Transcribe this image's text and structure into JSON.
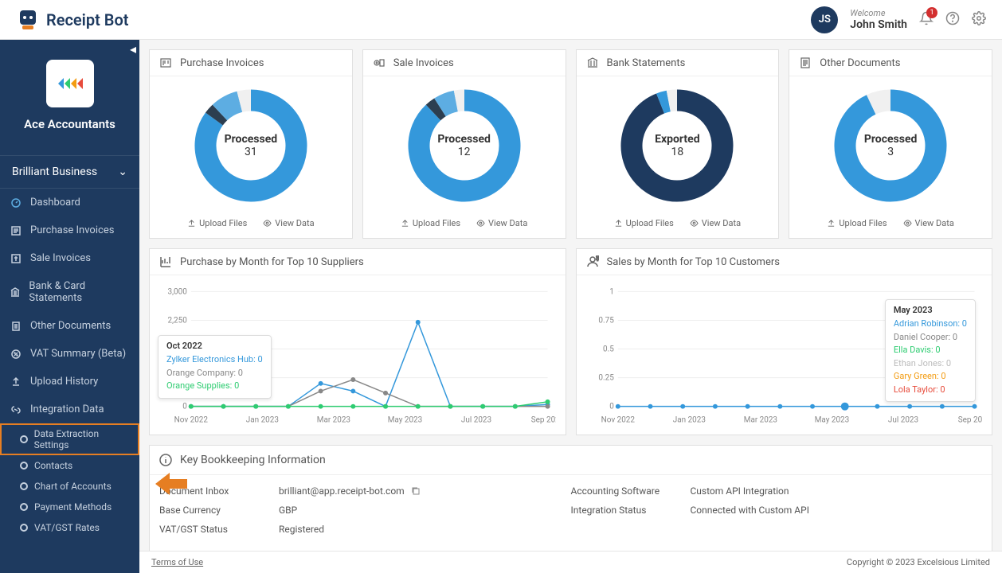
{
  "header": {
    "logo_text": "Receipt Bot",
    "welcome": "Welcome",
    "username": "John Smith",
    "user_initials": "JS",
    "notification_count": "1"
  },
  "sidebar": {
    "org_name": "Ace Accountants",
    "business_name": "Brilliant Business",
    "nav": [
      {
        "label": "Dashboard"
      },
      {
        "label": "Purchase Invoices"
      },
      {
        "label": "Sale Invoices"
      },
      {
        "label": "Bank & Card Statements"
      },
      {
        "label": "Other Documents"
      },
      {
        "label": "VAT Summary (Beta)"
      },
      {
        "label": "Upload History"
      },
      {
        "label": "Integration Data"
      }
    ],
    "sub": [
      {
        "label": "Data Extraction Settings"
      },
      {
        "label": "Contacts"
      },
      {
        "label": "Chart of Accounts"
      },
      {
        "label": "Payment Methods"
      },
      {
        "label": "VAT/GST Rates"
      }
    ]
  },
  "summary_cards": [
    {
      "title": "Purchase Invoices",
      "center_label": "Processed",
      "center_value": "31",
      "segments": [
        {
          "color": "#3498db",
          "pct": 85
        },
        {
          "color": "#2c3e50",
          "pct": 3
        },
        {
          "color": "#5dade2",
          "pct": 8
        },
        {
          "color": "#f0f0f0",
          "pct": 4
        }
      ]
    },
    {
      "title": "Sale Invoices",
      "center_label": "Processed",
      "center_value": "12",
      "segments": [
        {
          "color": "#3498db",
          "pct": 88
        },
        {
          "color": "#2c3e50",
          "pct": 3
        },
        {
          "color": "#5dade2",
          "pct": 6
        },
        {
          "color": "#f0f0f0",
          "pct": 3
        }
      ]
    },
    {
      "title": "Bank Statements",
      "center_label": "Exported",
      "center_value": "18",
      "segments": [
        {
          "color": "#1e3a5f",
          "pct": 94
        },
        {
          "color": "#3498db",
          "pct": 3
        },
        {
          "color": "#f0f0f0",
          "pct": 3
        }
      ]
    },
    {
      "title": "Other Documents",
      "center_label": "Processed",
      "center_value": "3",
      "segments": [
        {
          "color": "#3498db",
          "pct": 93
        },
        {
          "color": "#f0f0f0",
          "pct": 7
        }
      ]
    }
  ],
  "card_actions": {
    "upload": "Upload Files",
    "view": "View Data"
  },
  "charts": {
    "purchase": {
      "title": "Purchase by Month for Top 10 Suppliers",
      "y_ticks": [
        "0",
        "750",
        "1,500",
        "2,250",
        "3,000"
      ],
      "y_max": 3000,
      "x_labels": [
        "Nov 2022",
        "Jan 2023",
        "Mar 2023",
        "May 2023",
        "Jul 2023",
        "Sep 2023"
      ],
      "series": [
        {
          "color": "#3498db",
          "points": [
            0,
            0,
            0,
            0,
            600,
            400,
            0,
            2200,
            0,
            0,
            0,
            50
          ]
        },
        {
          "color": "#888",
          "points": [
            0,
            0,
            0,
            0,
            400,
            700,
            350,
            0,
            0,
            0,
            0,
            0
          ]
        },
        {
          "color": "#2ecc71",
          "points": [
            0,
            0,
            0,
            0,
            0,
            0,
            0,
            0,
            0,
            0,
            0,
            120
          ]
        }
      ],
      "tooltip": {
        "title": "Oct 2022",
        "lines": [
          {
            "text": "Zylker Electronics Hub: 0",
            "color": "#3498db"
          },
          {
            "text": "Orange Company: 0",
            "color": "#888"
          },
          {
            "text": "Orange Supplies: 0",
            "color": "#2ecc71"
          }
        ]
      }
    },
    "sales": {
      "title": "Sales by Month for Top 10 Customers",
      "y_ticks": [
        "0",
        "0.25",
        "0.5",
        "0.75",
        "1"
      ],
      "y_max": 1,
      "x_labels": [
        "Nov 2022",
        "Jan 2023",
        "Mar 2023",
        "May 2023",
        "Jul 2023",
        "Sep 2023"
      ],
      "series": [
        {
          "color": "#3498db",
          "points": [
            0,
            0,
            0,
            0,
            0,
            0,
            0,
            0,
            0,
            0,
            0,
            0
          ]
        }
      ],
      "highlighted_index": 7,
      "tooltip": {
        "title": "May 2023",
        "lines": [
          {
            "text": "Adrian Robinson: 0",
            "color": "#3498db"
          },
          {
            "text": "Daniel Cooper: 0",
            "color": "#888"
          },
          {
            "text": "Ella Davis: 0",
            "color": "#2ecc71"
          },
          {
            "text": "Ethan Jones: 0",
            "color": "#bbb"
          },
          {
            "text": "Gary Green: 0",
            "color": "#f39c12"
          },
          {
            "text": "Lola Taylor: 0",
            "color": "#e74c3c"
          }
        ]
      }
    }
  },
  "bookkeeping": {
    "title": "Key Bookkeeping Information",
    "left": [
      {
        "label": "Document Inbox",
        "value": "brilliant@app.receipt-bot.com",
        "copy": true
      },
      {
        "label": "Base Currency",
        "value": "GBP"
      },
      {
        "label": "VAT/GST Status",
        "value": "Registered"
      }
    ],
    "right": [
      {
        "label": "Accounting Software",
        "value": "Custom API Integration"
      },
      {
        "label": "Integration Status",
        "value": "Connected with Custom API"
      }
    ]
  },
  "footer": {
    "terms": "Terms of Use",
    "copyright": "Copyright © 2023 Excelsious Limited"
  },
  "colors": {
    "primary": "#1e3a5f",
    "accent": "#3498db",
    "highlight": "#e67e22"
  }
}
